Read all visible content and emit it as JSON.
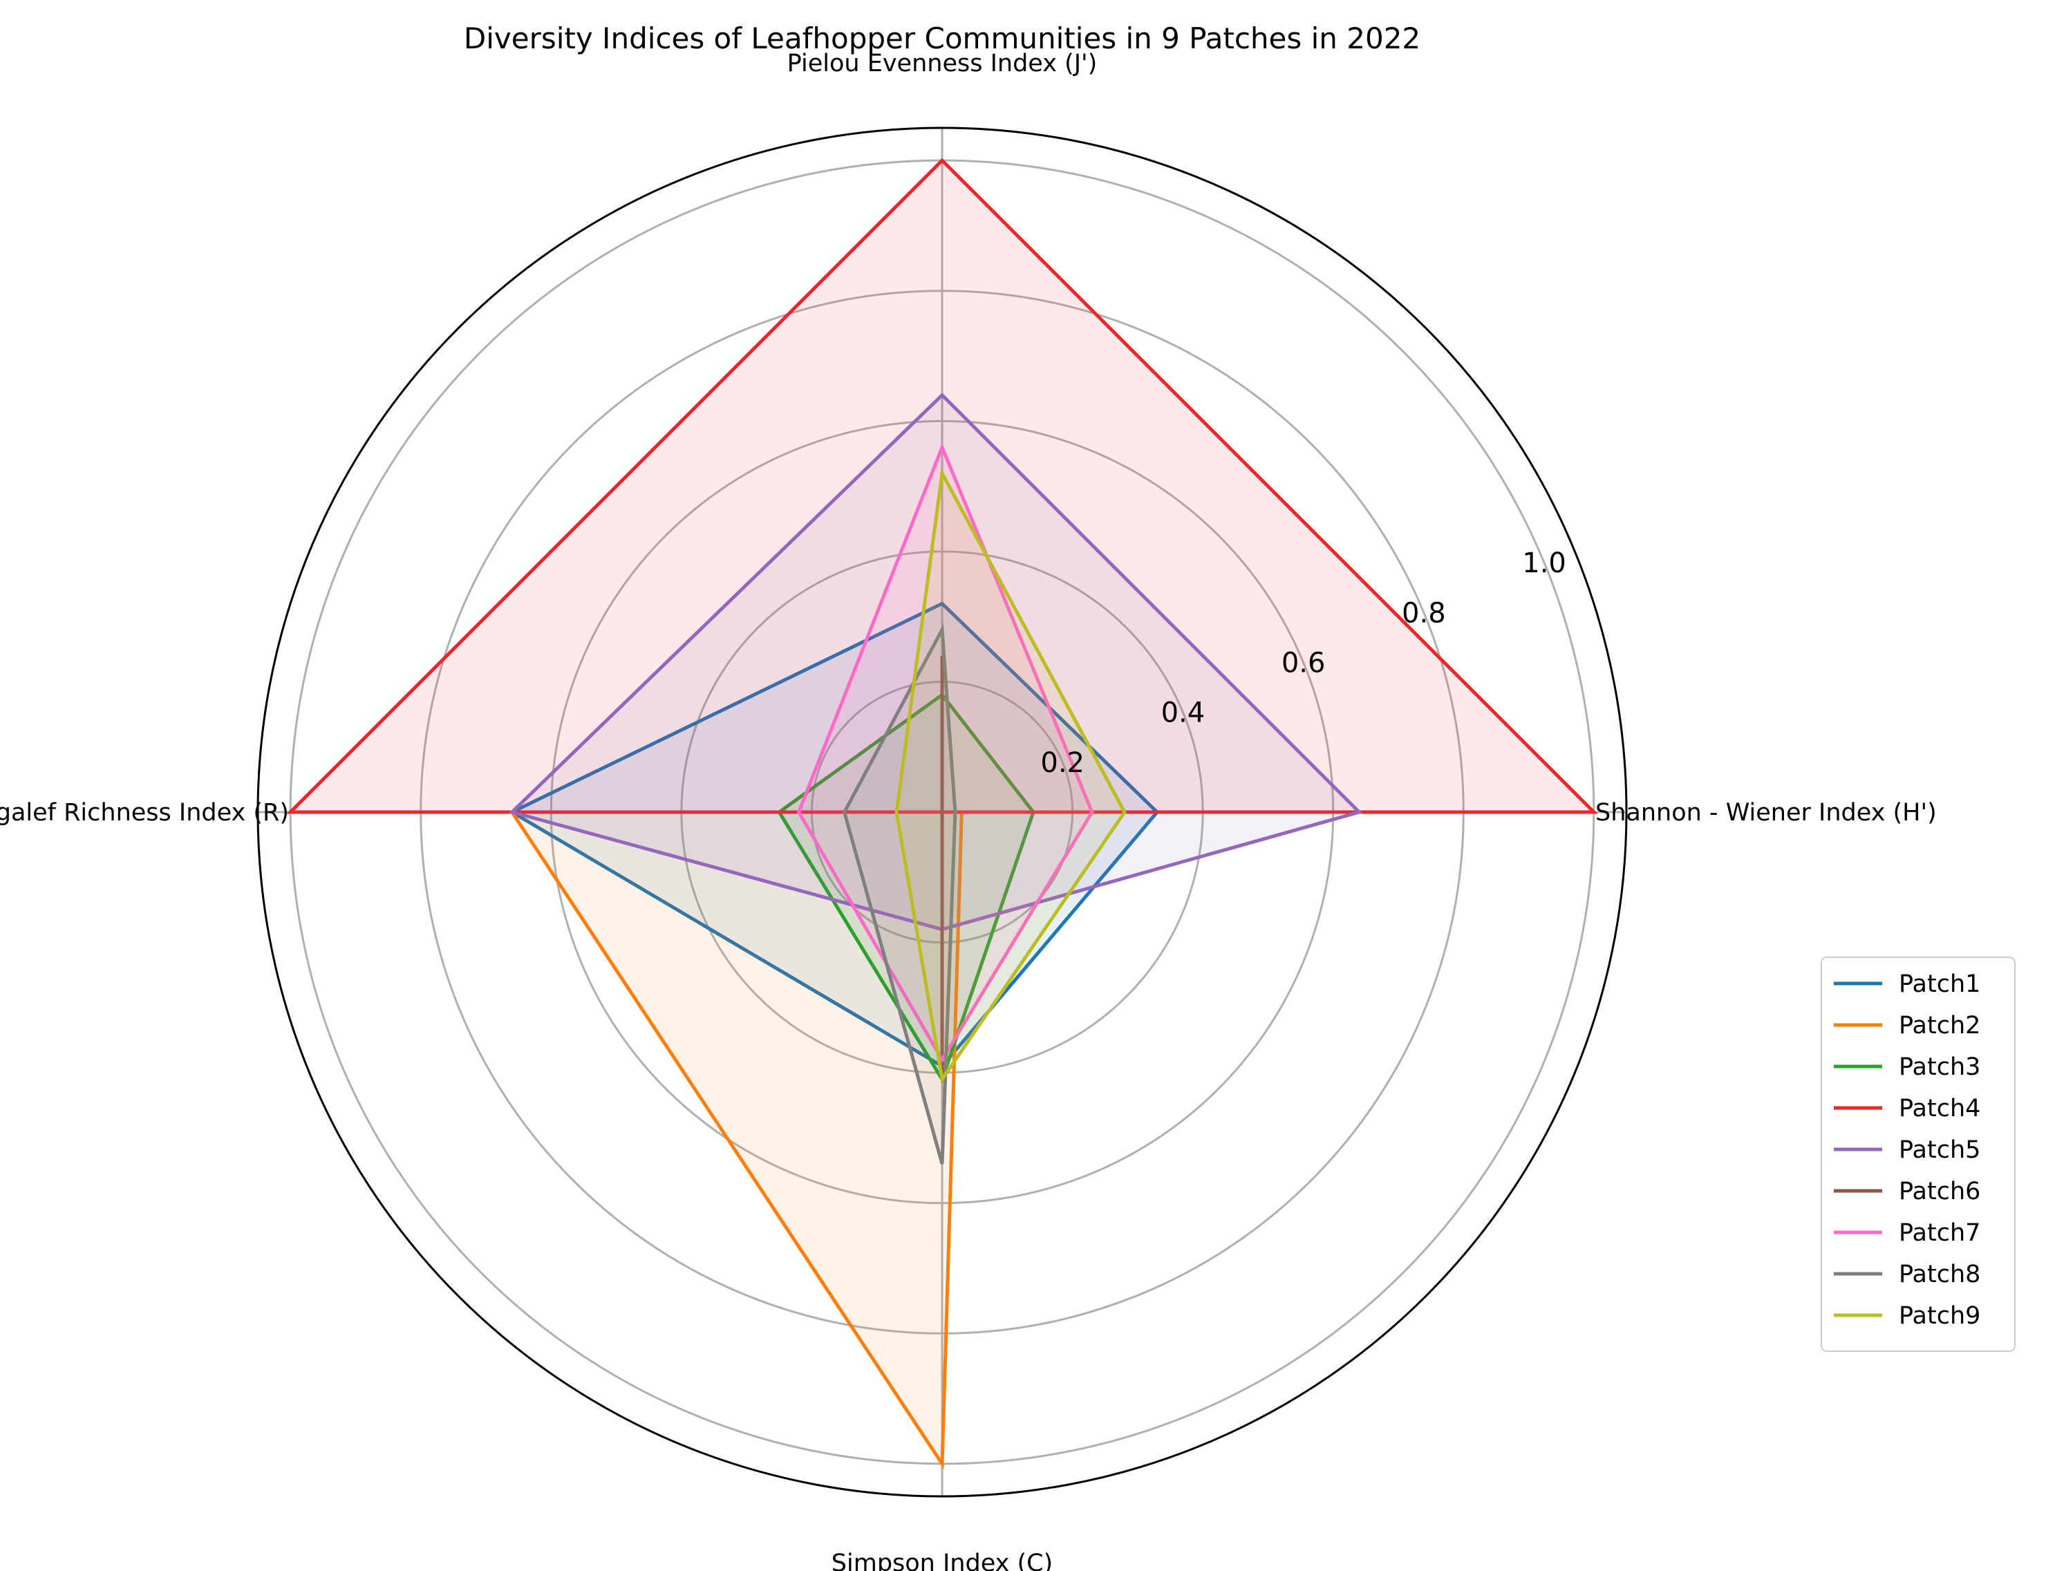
{
  "chart_data": {
    "type": "radar",
    "title": "Diversity Indices of Leafhopper Communities in 9 Patches in 2022",
    "axes": [
      "Shannon - Wiener Index (H')",
      "Pielou Evenness Index (J')",
      "Margalef Richness Index (R)",
      "Simpson Index (C)"
    ],
    "rlim": [
      0,
      1.05
    ],
    "rticks": [
      0.2,
      0.4,
      0.6,
      0.8,
      1.0
    ],
    "rtick_labels": [
      "0.2",
      "0.4",
      "0.6",
      "0.8",
      "1.0"
    ],
    "grid": true,
    "legend_position": "lower-right",
    "series": [
      {
        "name": "Patch1",
        "color": "#1f77b4",
        "values": [
          0.33,
          0.32,
          0.66,
          0.39
        ]
      },
      {
        "name": "Patch2",
        "color": "#ff7f0e",
        "values": [
          0.03,
          0.0,
          0.66,
          1.0
        ]
      },
      {
        "name": "Patch3",
        "color": "#2ca02c",
        "values": [
          0.14,
          0.18,
          0.25,
          0.41
        ]
      },
      {
        "name": "Patch4",
        "color": "#e8282b",
        "values": [
          1.0,
          1.0,
          1.0,
          0.0
        ]
      },
      {
        "name": "Patch5",
        "color": "#9467bd",
        "values": [
          0.64,
          0.64,
          0.66,
          0.18
        ]
      },
      {
        "name": "Patch6",
        "color": "#8c564b",
        "values": [
          0.0,
          0.24,
          0.0,
          0.41
        ]
      },
      {
        "name": "Patch7",
        "color": "#ff69c8",
        "values": [
          0.23,
          0.56,
          0.22,
          0.38
        ]
      },
      {
        "name": "Patch8",
        "color": "#7f7f7f",
        "values": [
          0.02,
          0.28,
          0.15,
          0.54
        ]
      },
      {
        "name": "Patch9",
        "color": "#bcbd22",
        "values": [
          0.28,
          0.52,
          0.07,
          0.41
        ]
      }
    ]
  }
}
